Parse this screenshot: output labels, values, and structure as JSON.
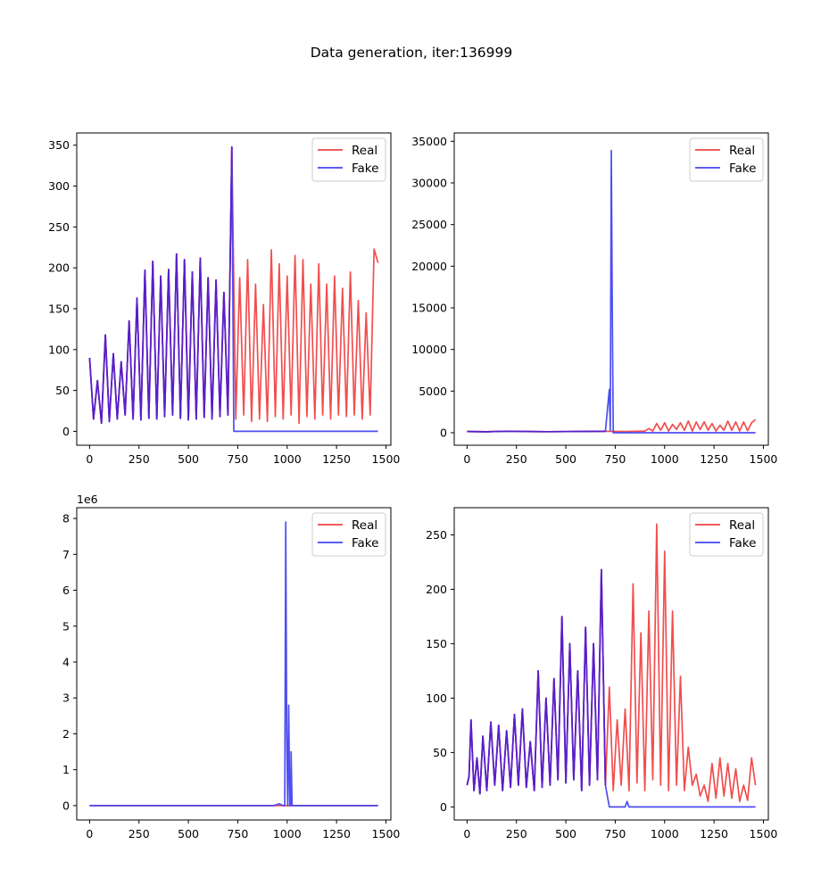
{
  "figure": {
    "title": "Data generation, iter:136999"
  },
  "colors": {
    "real": "#f04545",
    "fake": "#4545f0",
    "overlap": "#5a1ec8",
    "axes": "#000000",
    "background": "#ffffff"
  },
  "chart_data": [
    {
      "type": "line",
      "title": "",
      "xlabel": "",
      "ylabel": "",
      "xlim": [
        -65,
        1525
      ],
      "ylim": [
        -17,
        365
      ],
      "xticks": [
        0,
        250,
        500,
        750,
        1000,
        1250,
        1500
      ],
      "yticks": [
        0,
        50,
        100,
        150,
        200,
        250,
        300,
        350
      ],
      "offset_label": "",
      "legend": {
        "position": "top-right",
        "entries": [
          "Real",
          "Fake"
        ]
      },
      "grid": false,
      "series": [
        {
          "name": "Real",
          "role": "real",
          "x": [
            0,
            20,
            40,
            60,
            80,
            100,
            120,
            140,
            160,
            180,
            200,
            220,
            240,
            260,
            280,
            300,
            320,
            340,
            360,
            380,
            400,
            420,
            440,
            460,
            480,
            500,
            520,
            540,
            560,
            580,
            600,
            620,
            640,
            660,
            680,
            700,
            720,
            740,
            760,
            780,
            800,
            820,
            840,
            860,
            880,
            900,
            920,
            940,
            960,
            980,
            1000,
            1020,
            1040,
            1060,
            1080,
            1100,
            1120,
            1140,
            1160,
            1180,
            1200,
            1220,
            1240,
            1260,
            1280,
            1300,
            1320,
            1340,
            1360,
            1380,
            1400,
            1420,
            1440,
            1460
          ],
          "y": [
            90,
            15,
            62,
            10,
            118,
            12,
            95,
            15,
            85,
            20,
            135,
            15,
            163,
            14,
            197,
            16,
            208,
            15,
            190,
            18,
            198,
            20,
            217,
            16,
            210,
            14,
            195,
            15,
            212,
            17,
            188,
            15,
            185,
            18,
            170,
            20,
            348,
            15,
            188,
            20,
            210,
            12,
            180,
            15,
            155,
            12,
            222,
            18,
            205,
            15,
            190,
            20,
            215,
            10,
            210,
            18,
            180,
            15,
            205,
            20,
            180,
            15,
            190,
            20,
            175,
            18,
            195,
            20,
            160,
            15,
            145,
            20,
            223,
            206
          ]
        },
        {
          "name": "Fake",
          "role": "fake",
          "x": [
            0,
            20,
            40,
            60,
            80,
            100,
            120,
            140,
            160,
            180,
            200,
            220,
            240,
            260,
            280,
            300,
            320,
            340,
            360,
            380,
            400,
            420,
            440,
            460,
            480,
            500,
            520,
            540,
            560,
            580,
            600,
            620,
            640,
            660,
            680,
            700,
            720,
            730,
            1460
          ],
          "y": [
            90,
            15,
            62,
            10,
            118,
            12,
            95,
            15,
            85,
            20,
            135,
            15,
            163,
            14,
            197,
            16,
            208,
            15,
            190,
            18,
            198,
            20,
            217,
            16,
            210,
            14,
            195,
            15,
            212,
            17,
            188,
            15,
            185,
            18,
            170,
            20,
            348,
            0,
            0
          ]
        }
      ]
    },
    {
      "type": "line",
      "title": "",
      "xlabel": "",
      "ylabel": "",
      "xlim": [
        -65,
        1525
      ],
      "ylim": [
        -1500,
        36000
      ],
      "xticks": [
        0,
        250,
        500,
        750,
        1000,
        1250,
        1500
      ],
      "yticks": [
        0,
        5000,
        10000,
        15000,
        20000,
        25000,
        30000,
        35000
      ],
      "offset_label": "",
      "legend": {
        "position": "top-right",
        "entries": [
          "Real",
          "Fake"
        ]
      },
      "grid": false,
      "series": [
        {
          "name": "Real",
          "role": "real",
          "x": [
            0,
            100,
            200,
            300,
            400,
            500,
            600,
            700,
            800,
            900,
            920,
            940,
            960,
            980,
            1000,
            1020,
            1040,
            1060,
            1080,
            1100,
            1120,
            1140,
            1160,
            1180,
            1200,
            1220,
            1240,
            1260,
            1280,
            1300,
            1320,
            1340,
            1360,
            1380,
            1400,
            1420,
            1440,
            1460
          ],
          "y": [
            150,
            120,
            180,
            150,
            130,
            140,
            160,
            170,
            150,
            200,
            500,
            200,
            1100,
            300,
            1200,
            200,
            1000,
            400,
            1200,
            300,
            1400,
            200,
            1300,
            400,
            1300,
            300,
            1100,
            200,
            900,
            300,
            1400,
            300,
            1300,
            200,
            1300,
            250,
            1200,
            1600
          ]
        },
        {
          "name": "Fake",
          "role": "fake",
          "x": [
            0,
            100,
            200,
            300,
            400,
            500,
            600,
            700,
            720,
            725,
            730,
            735,
            740,
            750,
            1460
          ],
          "y": [
            150,
            120,
            180,
            150,
            130,
            140,
            160,
            170,
            5200,
            300,
            33900,
            15000,
            0,
            0,
            0
          ]
        }
      ]
    },
    {
      "type": "line",
      "title": "",
      "xlabel": "",
      "ylabel": "",
      "xlim": [
        -65,
        1525
      ],
      "ylim": [
        -400000,
        8300000
      ],
      "xticks": [
        0,
        250,
        500,
        750,
        1000,
        1250,
        1500
      ],
      "yticks": [
        0,
        1000000,
        2000000,
        3000000,
        4000000,
        5000000,
        6000000,
        7000000,
        8000000
      ],
      "ytick_labels": [
        "0",
        "1",
        "2",
        "3",
        "4",
        "5",
        "6",
        "7",
        "8"
      ],
      "offset_label": "1e6",
      "legend": {
        "position": "top-right",
        "entries": [
          "Real",
          "Fake"
        ]
      },
      "grid": false,
      "series": [
        {
          "name": "Real",
          "role": "real",
          "x": [
            0,
            1460
          ],
          "y": [
            0,
            0
          ]
        },
        {
          "name": "Fake",
          "role": "fake",
          "x": [
            0,
            930,
            960,
            980,
            988,
            993,
            998,
            1003,
            1008,
            1013,
            1018,
            1020,
            1025,
            1030,
            1460
          ],
          "y": [
            0,
            0,
            50000,
            0,
            0,
            7900000,
            2000000,
            0,
            2800000,
            0,
            0,
            1500000,
            0,
            0,
            0
          ]
        }
      ]
    },
    {
      "type": "line",
      "title": "",
      "xlabel": "",
      "ylabel": "",
      "xlim": [
        -65,
        1525
      ],
      "ylim": [
        -12,
        275
      ],
      "xticks": [
        0,
        250,
        500,
        750,
        1000,
        1250,
        1500
      ],
      "yticks": [
        0,
        50,
        100,
        150,
        200,
        250
      ],
      "offset_label": "",
      "legend": {
        "position": "top-right",
        "entries": [
          "Real",
          "Fake"
        ]
      },
      "grid": false,
      "series": [
        {
          "name": "Real",
          "role": "real",
          "x": [
            0,
            10,
            20,
            35,
            50,
            65,
            80,
            100,
            120,
            140,
            160,
            180,
            200,
            220,
            240,
            260,
            280,
            300,
            320,
            340,
            360,
            380,
            400,
            420,
            440,
            460,
            480,
            500,
            520,
            540,
            560,
            580,
            600,
            620,
            640,
            660,
            680,
            700,
            720,
            740,
            760,
            780,
            800,
            820,
            840,
            860,
            880,
            900,
            920,
            940,
            960,
            980,
            1000,
            1020,
            1040,
            1060,
            1080,
            1100,
            1120,
            1140,
            1160,
            1180,
            1200,
            1220,
            1240,
            1260,
            1280,
            1300,
            1320,
            1340,
            1360,
            1380,
            1400,
            1420,
            1440,
            1460
          ],
          "y": [
            20,
            28,
            80,
            15,
            45,
            12,
            65,
            15,
            78,
            20,
            75,
            15,
            70,
            18,
            85,
            20,
            90,
            18,
            60,
            15,
            125,
            18,
            100,
            20,
            118,
            25,
            175,
            22,
            150,
            25,
            125,
            15,
            165,
            20,
            150,
            25,
            218,
            20,
            110,
            15,
            80,
            20,
            90,
            15,
            205,
            22,
            160,
            15,
            180,
            25,
            260,
            20,
            235,
            15,
            180,
            20,
            120,
            15,
            55,
            20,
            30,
            10,
            20,
            5,
            40,
            8,
            45,
            10,
            40,
            8,
            35,
            5,
            20,
            6,
            45,
            20
          ]
        },
        {
          "name": "Fake",
          "role": "fake",
          "x": [
            0,
            10,
            20,
            35,
            50,
            65,
            80,
            100,
            120,
            140,
            160,
            180,
            200,
            220,
            240,
            260,
            280,
            300,
            320,
            340,
            360,
            380,
            400,
            420,
            440,
            460,
            480,
            500,
            520,
            540,
            560,
            580,
            600,
            620,
            640,
            660,
            680,
            700,
            720,
            740,
            800,
            810,
            820,
            1460
          ],
          "y": [
            20,
            28,
            80,
            15,
            45,
            12,
            65,
            15,
            78,
            20,
            75,
            15,
            70,
            18,
            85,
            20,
            90,
            18,
            60,
            15,
            125,
            18,
            100,
            20,
            118,
            25,
            175,
            22,
            150,
            25,
            125,
            15,
            165,
            20,
            150,
            25,
            218,
            20,
            0,
            0,
            0,
            5,
            0,
            0
          ]
        }
      ]
    }
  ]
}
